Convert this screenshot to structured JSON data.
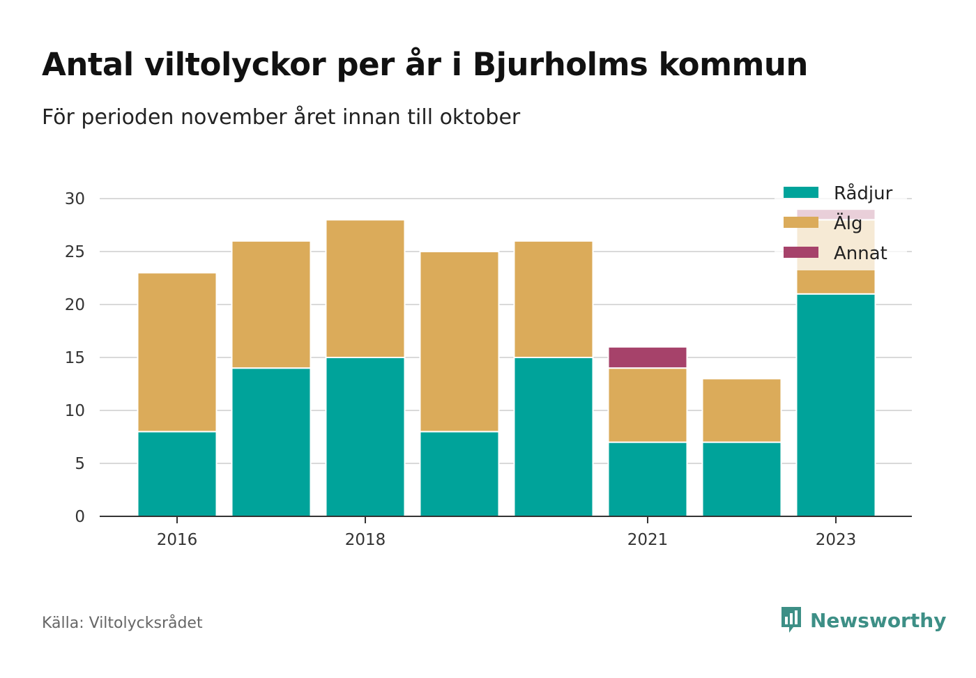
{
  "header": {
    "title": "Antal viltolyckor per år i Bjurholms kommun",
    "subtitle": "För perioden november året innan till oktober"
  },
  "footer": {
    "source": "Källa: Viltolycksrådet",
    "brand": "Newsworthy",
    "brand_icon": "bar-chart-speech-bubble-icon",
    "brand_color": "#3d8f86"
  },
  "chart_data": {
    "type": "bar",
    "stacked": true,
    "title": "Antal viltolyckor per år i Bjurholms kommun",
    "subtitle": "För perioden november året innan till oktober",
    "categories": [
      "2016",
      "2017",
      "2018",
      "2019",
      "2020",
      "2021",
      "2022",
      "2023"
    ],
    "x_tick_labels": [
      "2016",
      "",
      "2018",
      "",
      "",
      "2021",
      "",
      "2023"
    ],
    "series": [
      {
        "name": "Rådjur",
        "color": "#00a39a",
        "values": [
          8,
          14,
          15,
          8,
          15,
          7,
          7,
          21
        ]
      },
      {
        "name": "Älg",
        "color": "#dbab5a",
        "values": [
          15,
          12,
          13,
          17,
          11,
          7,
          6,
          7
        ]
      },
      {
        "name": "Annat",
        "color": "#a6426a",
        "values": [
          0,
          0,
          0,
          0,
          0,
          2,
          0,
          1
        ]
      }
    ],
    "ylim": [
      0,
      30
    ],
    "yticks": [
      0,
      5,
      10,
      15,
      20,
      25,
      30
    ],
    "xlabel": "",
    "ylabel": "",
    "grid": true,
    "legend_position": "top-right"
  }
}
